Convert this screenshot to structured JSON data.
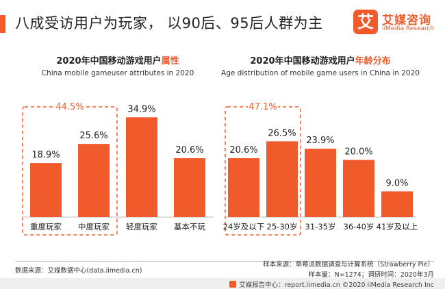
{
  "page_title": "八成受访用户为玩家， 以90后、95后人群为主",
  "logo": {
    "mark": "艾",
    "name_cn": "艾媒咨询",
    "name_en": "iiMedia Research"
  },
  "chart_data": [
    {
      "type": "bar",
      "title_pre": "2020年中国移动游戏用户",
      "title_highlight": "属性",
      "subtitle": "China mobile gameuser attributes  in 2020",
      "categories": [
        "重度玩家",
        "中度玩家",
        "轻度玩家",
        "基本不玩"
      ],
      "values": [
        18.9,
        25.6,
        34.9,
        20.6
      ],
      "value_labels": [
        "18.9%",
        "25.6%",
        "34.9%",
        "20.6%"
      ],
      "ylim": [
        0,
        40
      ],
      "group_label": "44.5%",
      "group_range": [
        0,
        1
      ],
      "bar_color": "#f15a2b"
    },
    {
      "type": "bar",
      "title_pre": "2020年中国移动游戏用户",
      "title_highlight": "年龄分布",
      "subtitle": "Age distribution of mobile game users in China in 2020",
      "categories": [
        "24岁及以下",
        "25-30岁",
        "31-35岁",
        "36-40岁",
        "41岁及以上"
      ],
      "values": [
        20.6,
        26.5,
        23.9,
        20.0,
        9.0
      ],
      "value_labels": [
        "20.6%",
        "26.5%",
        "23.9%",
        "20.0%",
        "9.0%"
      ],
      "ylim": [
        0,
        40
      ],
      "group_label": "47.1%",
      "group_range": [
        0,
        1
      ],
      "bar_color": "#f15a2b"
    }
  ],
  "footer": {
    "source_left": "数据来源：艾媒数据中心(data.iimedia.cn)",
    "source_right_1": "样本来源：草莓派数据调查与计算系统（Strawberry Pie）",
    "source_right_2": "样本量：N=1274；调研时间：2020年3月",
    "bottom_text": "艾媒报告中心：report.iimedia.cn    ©2020  iiMedia Research  Inc"
  }
}
